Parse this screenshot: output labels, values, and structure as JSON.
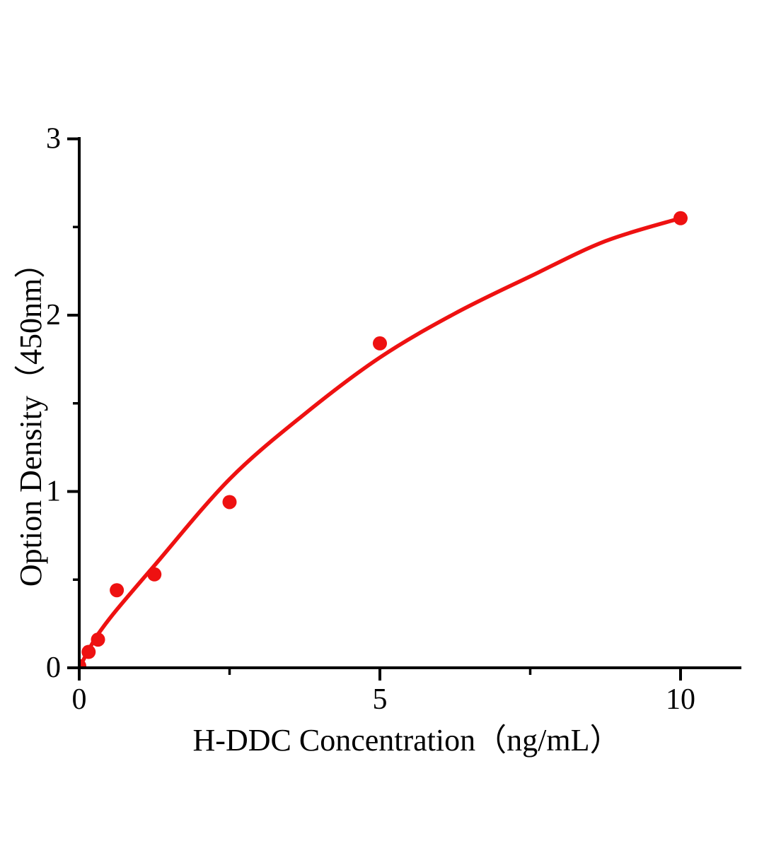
{
  "page": {
    "background": "#ffffff"
  },
  "chart_data": {
    "type": "scatter",
    "title": "",
    "xlabel": "H-DDC Concentration（ng/mL）",
    "ylabel": "Option Density（450nm）",
    "grid": false,
    "legend": null,
    "axis_color": "#000000",
    "series_color": "#ee1111",
    "x_axis": {
      "min": 0,
      "max": 11,
      "major_ticks": [
        0,
        5,
        10
      ],
      "tick_labels": [
        "0",
        "5",
        "10"
      ],
      "minor_ticks": [
        2.5,
        7.5
      ]
    },
    "y_axis": {
      "min": 0,
      "max": 3,
      "major_ticks": [
        0,
        1,
        2,
        3
      ],
      "tick_labels": [
        "0",
        "1",
        "2",
        "3"
      ],
      "minor_ticks": [
        0.5,
        1.5,
        2.5
      ]
    },
    "series": [
      {
        "name": "standard-points",
        "type": "scatter",
        "color": "#ee1111",
        "points": [
          [
            0,
            0.01
          ],
          [
            0.156,
            0.09
          ],
          [
            0.312,
            0.16
          ],
          [
            0.625,
            0.44
          ],
          [
            1.25,
            0.53
          ],
          [
            2.5,
            0.94
          ],
          [
            5,
            1.84
          ],
          [
            10,
            2.55
          ]
        ]
      },
      {
        "name": "fit-curve",
        "type": "line",
        "color": "#ee1111",
        "points": [
          [
            0,
            0.0
          ],
          [
            0.156,
            0.1
          ],
          [
            0.312,
            0.19
          ],
          [
            0.625,
            0.33
          ],
          [
            1.25,
            0.58
          ],
          [
            2.5,
            1.07
          ],
          [
            3.75,
            1.44
          ],
          [
            5,
            1.76
          ],
          [
            6.25,
            2.01
          ],
          [
            7.5,
            2.22
          ],
          [
            8.75,
            2.42
          ],
          [
            10,
            2.55
          ]
        ]
      }
    ]
  }
}
